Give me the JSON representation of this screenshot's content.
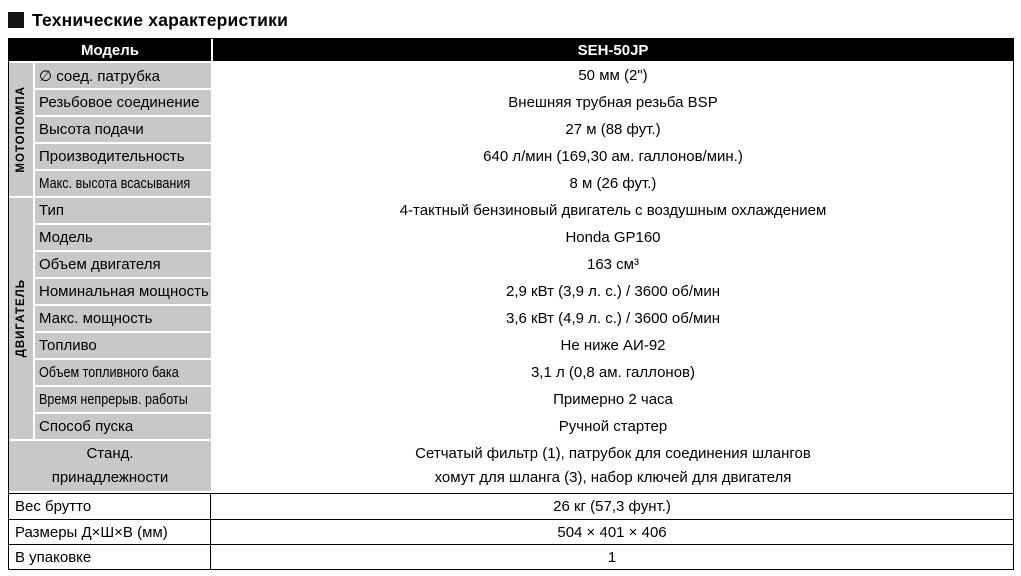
{
  "title": "Технические характеристики",
  "header": {
    "model_label": "Модель",
    "model_value": "SEH-50JP"
  },
  "sections": [
    {
      "name": "МОТОПОМПА",
      "rows": [
        {
          "label": "∅ соед. патрубка",
          "value": "50 мм (2\")"
        },
        {
          "label": "Резьбовое соединение",
          "value": "Внешняя трубная резьба BSP"
        },
        {
          "label": "Высота подачи",
          "value": "27 м (88 фут.)"
        },
        {
          "label": "Производительность",
          "value": "640 л/мин (169,30 ам. галлонов/мин.)"
        },
        {
          "label": "Макс. высота всасывания",
          "value": "8 м (26 фут.)"
        }
      ]
    },
    {
      "name": "ДВИГАТЕЛЬ",
      "rows": [
        {
          "label": "Тип",
          "value": "4-тактный бензиновый двигатель с воздушным охлаждением"
        },
        {
          "label": "Модель",
          "value": "Honda GP160"
        },
        {
          "label": "Объем двигателя",
          "value": "163 см³"
        },
        {
          "label": "Номинальная мощность",
          "value": "2,9 кВт (3,9 л. с.) / 3600 об/мин"
        },
        {
          "label": "Макс. мощность",
          "value": "3,6 кВт (4,9 л. с.) / 3600 об/мин"
        },
        {
          "label": "Топливо",
          "value": "Не ниже АИ-92"
        },
        {
          "label": "Объем топливного бака",
          "value": "3,1 л (0,8 ам. галлонов)"
        },
        {
          "label": "Время непрерыв. работы",
          "value": "Примерно 2 часа"
        },
        {
          "label": "Способ пуска",
          "value": "Ручной стартер"
        }
      ]
    }
  ],
  "accessories": {
    "label_line1": "Станд.",
    "label_line2": "принадлежности",
    "value_line1": "Сетчатый фильтр (1), патрубок для соединения шлангов",
    "value_line2": "хомут для шланга (3), набор ключей для двигателя"
  },
  "footer_rows": [
    {
      "label": "Вес брутто",
      "value": "26 кг (57,3 фунт.)"
    },
    {
      "label": "Размеры Д×Ш×В (мм)",
      "value": "504 × 401 × 406"
    },
    {
      "label": "В упаковке",
      "value": "1"
    }
  ],
  "colors": {
    "header_bg": "#000000",
    "cell_gray": "#c8c8c8",
    "title_square": "#141414"
  }
}
